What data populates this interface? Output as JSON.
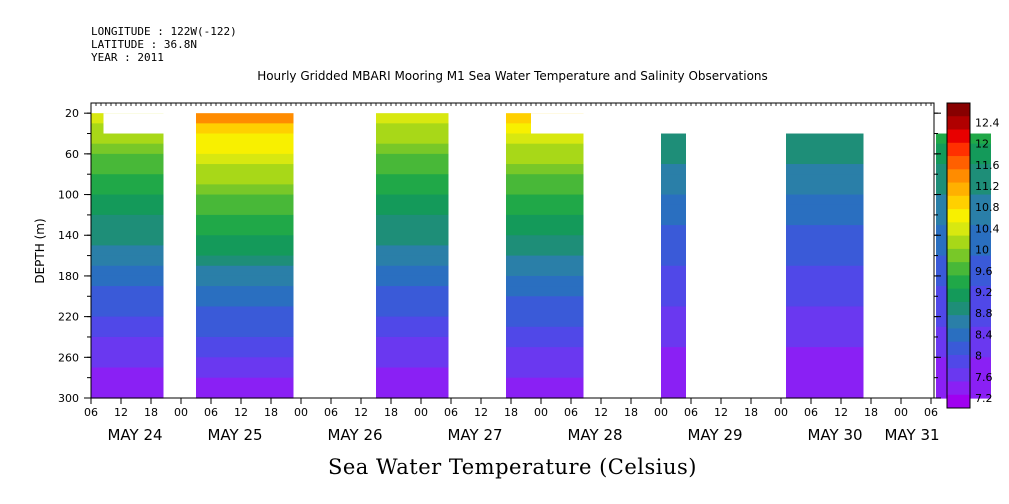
{
  "header": {
    "longitude": "LONGITUDE : 122W(-122)",
    "latitude": "LATITUDE : 36.8N",
    "year": "YEAR : 2011",
    "title": "Hourly Gridded MBARI Mooring M1 Sea Water Temperature and Salinity Observations"
  },
  "footer_title": "Sea Water Temperature (Celsius)",
  "chart_data": {
    "type": "heatmap",
    "title": "Hourly Gridded MBARI Mooring M1 Sea Water Temperature and Salinity Observations",
    "xlabel": "",
    "ylabel": "DEPTH (m)",
    "colorbar_label": "Sea Water Temperature (Celsius)",
    "x_start": "MAY 24 06",
    "x_end": "MAY 31 06+",
    "x_hour_ticks": [
      "06",
      "12",
      "18",
      "00",
      "06",
      "12",
      "18",
      "00",
      "06",
      "12",
      "18",
      "00",
      "06",
      "12",
      "18",
      "00",
      "06",
      "12",
      "18",
      "00",
      "06",
      "12",
      "18",
      "00",
      "06",
      "12",
      "18",
      "00",
      "06"
    ],
    "x_day_labels": [
      "MAY 24",
      "MAY 25",
      "MAY 26",
      "MAY 27",
      "MAY 28",
      "MAY 29",
      "MAY 30",
      "MAY 31"
    ],
    "y_ticks": [
      20,
      60,
      100,
      140,
      180,
      220,
      260,
      300
    ],
    "ylim": [
      300,
      10
    ],
    "colorbar_levels": [
      7.2,
      7.6,
      8,
      8.4,
      8.8,
      9.2,
      9.6,
      10,
      10.4,
      10.8,
      11.2,
      11.6,
      12,
      12.4
    ],
    "colorbar_colors": [
      "#a000f0",
      "#8a20f4",
      "#6a38f0",
      "#5048e8",
      "#3a5ad8",
      "#2a6fc0",
      "#2a7fa8",
      "#1e8e78",
      "#149a5a",
      "#20a848",
      "#48b838",
      "#78c828",
      "#a8d818",
      "#d8e810",
      "#f8f000",
      "#ffd000",
      "#ffb000",
      "#ff8c00",
      "#ff6000",
      "#ff3000",
      "#e80000",
      "#b00000",
      "#880000"
    ],
    "data_segments": [
      {
        "start_hour": 0,
        "end_hour": 14.5,
        "top_depth": 20,
        "steps": [
          {
            "hour": 2.5,
            "top_depth": 40
          }
        ],
        "surface_temp": 10.4,
        "bottom_temp": 7.2
      },
      {
        "start_hour": 21,
        "end_hour": 40.5,
        "top_depth": 20,
        "surface_temp": 11.2,
        "bottom_temp": 7.2
      },
      {
        "start_hour": 57,
        "end_hour": 71.5,
        "top_depth": 20,
        "surface_temp": 10.4,
        "bottom_temp": 7.2
      },
      {
        "start_hour": 83,
        "end_hour": 98.5,
        "top_depth": 20,
        "steps": [
          {
            "hour": 88,
            "top_depth": 40
          }
        ],
        "surface_temp": 10.8,
        "bottom_temp": 7.2
      },
      {
        "start_hour": 114,
        "end_hour": 119,
        "top_depth": 40,
        "surface_temp": 9.2,
        "bottom_temp": 7.2
      },
      {
        "start_hour": 139,
        "end_hour": 154.5,
        "top_depth": 40,
        "surface_temp": 9.2,
        "bottom_temp": 7.2
      },
      {
        "start_hour": 169,
        "end_hour": 180,
        "top_depth": 40,
        "surface_temp": 9.6,
        "bottom_temp": 7.2
      }
    ]
  }
}
